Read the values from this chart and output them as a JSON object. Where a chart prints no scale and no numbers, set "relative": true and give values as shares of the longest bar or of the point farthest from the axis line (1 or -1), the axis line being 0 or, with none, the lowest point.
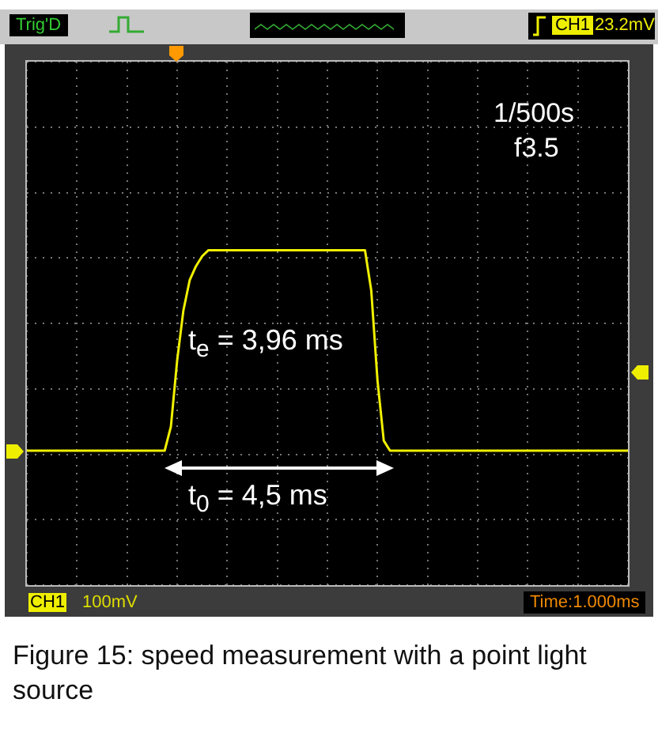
{
  "chart_data": {
    "type": "line",
    "relative": true,
    "categories": [
      null,
      null,
      null,
      null,
      null,
      null,
      null,
      null,
      null,
      null,
      null,
      null,
      null,
      null,
      null,
      null,
      null,
      null,
      null,
      null,
      null,
      null,
      null,
      null,
      null,
      null,
      null,
      null,
      null,
      null,
      null,
      null,
      null,
      null,
      null,
      null,
      null,
      null,
      null,
      null,
      null,
      null,
      null,
      null,
      null,
      null,
      null,
      null,
      null,
      null,
      null,
      null,
      null,
      null,
      null,
      null,
      null,
      null,
      null,
      null,
      null,
      null,
      null,
      null,
      null,
      null,
      null,
      null,
      null,
      null,
      null,
      null,
      null,
      null,
      null,
      null,
      null,
      null,
      null,
      null,
      null,
      null,
      null,
      null,
      null,
      null,
      null,
      null,
      null,
      null,
      null,
      null,
      null,
      null,
      null,
      null,
      null
    ],
    "series": [
      {
        "color": "#f0f000",
        "values": [
          0,
          0,
          0,
          0,
          0,
          0,
          0,
          0,
          0,
          0,
          0,
          0,
          0,
          0,
          0,
          0,
          0,
          0,
          0,
          0,
          0,
          0,
          0,
          0.12,
          0.45,
          0.7,
          0.85,
          0.92,
          0.97,
          1,
          1,
          1,
          1,
          1,
          1,
          1,
          1,
          1,
          1,
          1,
          1,
          1,
          1,
          1,
          1,
          1,
          1,
          1,
          1,
          1,
          1,
          1,
          1,
          1,
          1,
          0.8,
          0.35,
          0.05,
          0,
          0,
          0,
          0,
          0,
          0,
          0,
          0,
          0,
          0,
          0,
          0,
          0,
          0,
          0,
          0,
          0,
          0,
          0,
          0,
          0,
          0,
          0,
          0,
          0,
          0,
          0,
          0,
          0,
          0,
          0,
          0,
          0,
          0,
          0,
          0,
          0,
          0,
          0
        ]
      }
    ],
    "grid": true,
    "legend": false,
    "marker": "none",
    "line_style": "solid",
    "annotations": [
      "Trig'D",
      "CH1",
      "23.2mV",
      "1/500s",
      "f3.5",
      "t$_{e}$ = 3,96 ms",
      "t$_{0}$ = 4,5 ms",
      "CH1",
      "100mV",
      "Time:1.000ms",
      "Figure 15: speed measurement with a point light source"
    ]
  }
}
